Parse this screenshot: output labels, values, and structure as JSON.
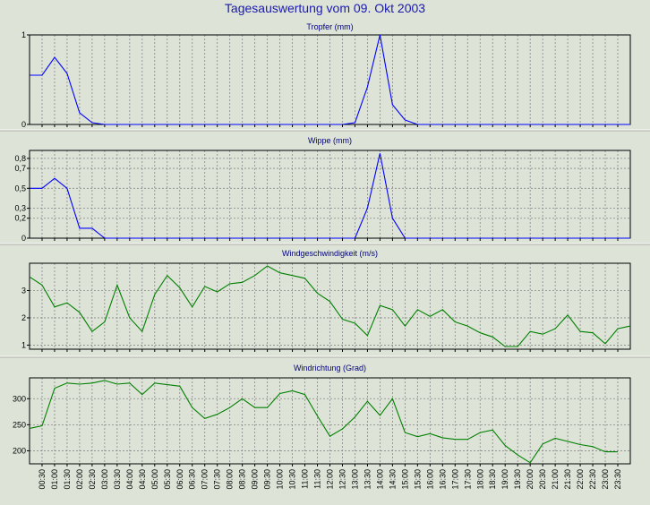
{
  "page": {
    "title": "Tagesauswertung vom 09. Okt 2003"
  },
  "colors": {
    "background": "#dde3d7",
    "frame": "#000000",
    "grid": "#888888",
    "title": "#1a1ab0",
    "label": "#000080",
    "blue_series": "#0000ff",
    "green_series": "#008000"
  },
  "x_labels": [
    "00:30",
    "01:00",
    "01:30",
    "02:00",
    "02:30",
    "03:00",
    "03:30",
    "04:00",
    "04:30",
    "05:00",
    "05:30",
    "06:00",
    "06:30",
    "07:00",
    "07:30",
    "08:00",
    "08:30",
    "09:00",
    "09:30",
    "10:00",
    "10:30",
    "11:00",
    "11:30",
    "12:00",
    "12:30",
    "13:00",
    "13:30",
    "14:00",
    "14:30",
    "15:00",
    "15:30",
    "16:00",
    "16:30",
    "17:00",
    "17:30",
    "18:00",
    "18:30",
    "19:00",
    "19:30",
    "20:00",
    "20:30",
    "21:00",
    "21:30",
    "22:00",
    "22:30",
    "23:00",
    "23:30"
  ],
  "chart_data": [
    {
      "type": "line",
      "title": "Tropfer (mm)",
      "x": [
        "00:00",
        "00:30",
        "01:00",
        "01:30",
        "02:00",
        "02:30",
        "03:00",
        "03:30",
        "04:00",
        "04:30",
        "05:00",
        "05:30",
        "06:00",
        "06:30",
        "07:00",
        "07:30",
        "08:00",
        "08:30",
        "09:00",
        "09:30",
        "10:00",
        "10:30",
        "11:00",
        "11:30",
        "12:00",
        "12:30",
        "13:00",
        "13:30",
        "14:00",
        "14:30",
        "15:00",
        "15:30",
        "16:00",
        "16:30",
        "17:00",
        "17:30",
        "18:00",
        "18:30",
        "19:00",
        "19:30",
        "20:00",
        "20:30",
        "21:00",
        "21:30",
        "22:00",
        "22:30",
        "23:00",
        "23:30",
        "24:00"
      ],
      "values": [
        0.55,
        0.55,
        0.75,
        0.57,
        0.13,
        0.02,
        0,
        0,
        0,
        0,
        0,
        0,
        0,
        0,
        0,
        0,
        0,
        0,
        0,
        0,
        0,
        0,
        0,
        0,
        0,
        0,
        0.02,
        0.42,
        1.0,
        0.22,
        0.05,
        0,
        0,
        0,
        0,
        0,
        0,
        0,
        0,
        0,
        0,
        0,
        0,
        0,
        0,
        0,
        0,
        0,
        0
      ],
      "ylim": [
        0,
        1
      ],
      "yticks": [
        "0",
        "1"
      ],
      "ytick_values": [
        0,
        1
      ],
      "color": "#0000ff",
      "grid": true
    },
    {
      "type": "line",
      "title": "Wippe (mm)",
      "x": [
        "00:00",
        "00:30",
        "01:00",
        "01:30",
        "02:00",
        "02:30",
        "03:00",
        "03:30",
        "04:00",
        "04:30",
        "05:00",
        "05:30",
        "06:00",
        "06:30",
        "07:00",
        "07:30",
        "08:00",
        "08:30",
        "09:00",
        "09:30",
        "10:00",
        "10:30",
        "11:00",
        "11:30",
        "12:00",
        "12:30",
        "13:00",
        "13:30",
        "14:00",
        "14:30",
        "15:00",
        "15:30",
        "16:00",
        "16:30",
        "17:00",
        "17:30",
        "18:00",
        "18:30",
        "19:00",
        "19:30",
        "20:00",
        "20:30",
        "21:00",
        "21:30",
        "22:00",
        "22:30",
        "23:00",
        "23:30",
        "24:00"
      ],
      "values": [
        0.5,
        0.5,
        0.6,
        0.5,
        0.1,
        0.1,
        0,
        0,
        0,
        0,
        0,
        0,
        0,
        0,
        0,
        0,
        0,
        0,
        0,
        0,
        0,
        0,
        0,
        0,
        0,
        0,
        0,
        0.3,
        0.85,
        0.2,
        0,
        0,
        0,
        0,
        0,
        0,
        0,
        0,
        0,
        0,
        0,
        0,
        0,
        0,
        0,
        0,
        0,
        0,
        0
      ],
      "ylim": [
        0,
        0.88
      ],
      "yticks": [
        "0",
        "0,2",
        "0,3",
        "0,5",
        "0,7",
        "0,8"
      ],
      "ytick_values": [
        0,
        0.2,
        0.3,
        0.5,
        0.7,
        0.8
      ],
      "color": "#0000ff",
      "grid": true
    },
    {
      "type": "line",
      "title": "Windgeschwindigkeit (m/s)",
      "x": [
        "00:00",
        "00:30",
        "01:00",
        "01:30",
        "02:00",
        "02:30",
        "03:00",
        "03:30",
        "04:00",
        "04:30",
        "05:00",
        "05:30",
        "06:00",
        "06:30",
        "07:00",
        "07:30",
        "08:00",
        "08:30",
        "09:00",
        "09:30",
        "10:00",
        "10:30",
        "11:00",
        "11:30",
        "12:00",
        "12:30",
        "13:00",
        "13:30",
        "14:00",
        "14:30",
        "15:00",
        "15:30",
        "16:00",
        "16:30",
        "17:00",
        "17:30",
        "18:00",
        "18:30",
        "19:00",
        "19:30",
        "20:00",
        "20:30",
        "21:00",
        "21:30",
        "22:00",
        "22:30",
        "23:00",
        "23:30",
        "24:00"
      ],
      "values": [
        3.5,
        3.2,
        2.4,
        2.55,
        2.2,
        1.5,
        1.85,
        3.2,
        2.0,
        1.5,
        2.85,
        3.55,
        3.1,
        2.4,
        3.15,
        2.95,
        3.25,
        3.3,
        3.55,
        3.9,
        3.65,
        3.55,
        3.45,
        2.9,
        2.6,
        1.95,
        1.8,
        1.35,
        2.45,
        2.3,
        1.7,
        2.3,
        2.05,
        2.3,
        1.85,
        1.7,
        1.45,
        1.3,
        0.95,
        0.95,
        1.5,
        1.4,
        1.6,
        2.1,
        1.5,
        1.45,
        1.05,
        1.6,
        1.7
      ],
      "ylim": [
        0.85,
        4.0
      ],
      "yticks": [
        "1",
        "2",
        "3"
      ],
      "ytick_values": [
        1,
        2,
        3
      ],
      "color": "#008000",
      "grid": true
    },
    {
      "type": "line",
      "title": "Windrichtung (Grad)",
      "x": [
        "00:00",
        "00:30",
        "01:00",
        "01:30",
        "02:00",
        "02:30",
        "03:00",
        "03:30",
        "04:00",
        "04:30",
        "05:00",
        "05:30",
        "06:00",
        "06:30",
        "07:00",
        "07:30",
        "08:00",
        "08:30",
        "09:00",
        "09:30",
        "10:00",
        "10:30",
        "11:00",
        "11:30",
        "12:00",
        "12:30",
        "13:00",
        "13:30",
        "14:00",
        "14:30",
        "15:00",
        "15:30",
        "16:00",
        "16:30",
        "17:00",
        "17:30",
        "18:00",
        "18:30",
        "19:00",
        "19:30",
        "20:00",
        "20:30",
        "21:00",
        "21:30",
        "22:00",
        "22:30",
        "23:00",
        "23:30"
      ],
      "values": [
        243,
        248,
        320,
        330,
        328,
        330,
        335,
        328,
        330,
        308,
        330,
        327,
        324,
        283,
        262,
        270,
        283,
        300,
        283,
        283,
        310,
        315,
        308,
        267,
        228,
        242,
        265,
        295,
        268,
        300,
        235,
        227,
        233,
        225,
        222,
        222,
        235,
        240,
        210,
        192,
        177,
        213,
        224,
        218,
        212,
        208,
        198,
        198
      ],
      "ylim": [
        175,
        340
      ],
      "yticks": [
        "200",
        "250",
        "300"
      ],
      "ytick_values": [
        200,
        250,
        300
      ],
      "color": "#008000",
      "grid": true
    }
  ]
}
